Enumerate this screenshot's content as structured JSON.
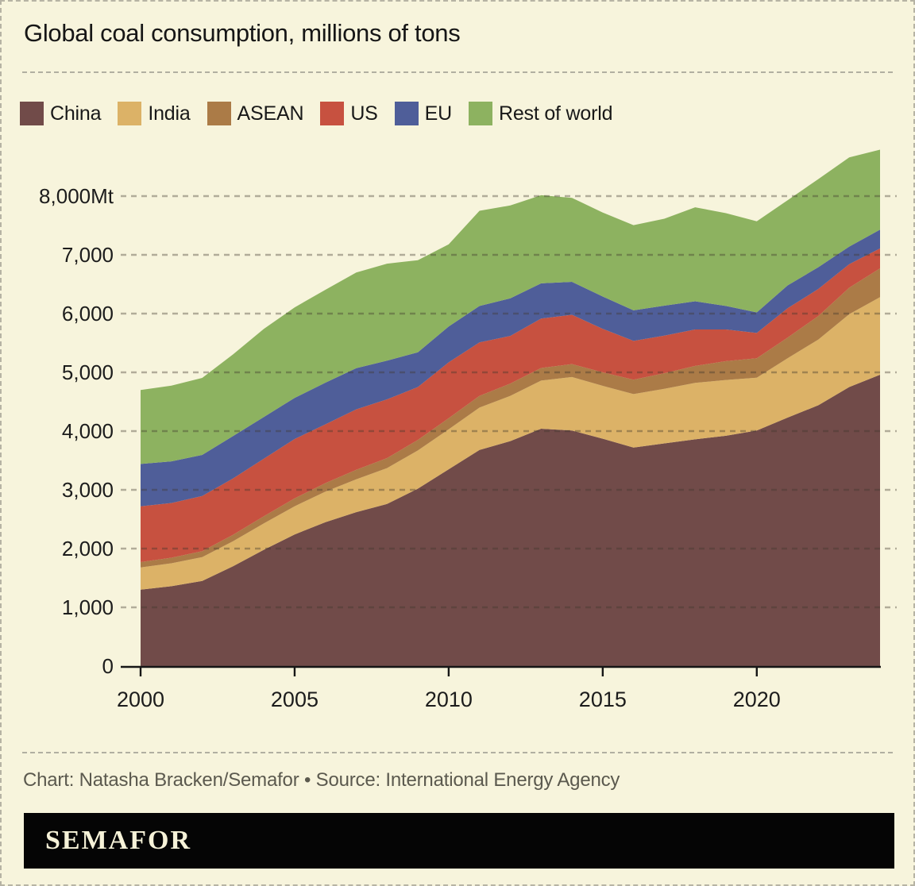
{
  "title": "Global coal consumption, millions of tons",
  "legend": [
    {
      "label": "China",
      "color": "#714b49"
    },
    {
      "label": "India",
      "color": "#dcb267"
    },
    {
      "label": "ASEAN",
      "color": "#ab7b47"
    },
    {
      "label": "US",
      "color": "#c75140"
    },
    {
      "label": "EU",
      "color": "#4f5e99"
    },
    {
      "label": "Rest of world",
      "color": "#8db260"
    }
  ],
  "chart_data": {
    "type": "area",
    "stacked": true,
    "title": "Global coal consumption, millions of tons",
    "unit": "Mt",
    "x": [
      2000,
      2001,
      2002,
      2003,
      2004,
      2005,
      2006,
      2007,
      2008,
      2009,
      2010,
      2011,
      2012,
      2013,
      2014,
      2015,
      2016,
      2017,
      2018,
      2019,
      2020,
      2021,
      2022,
      2023,
      2024
    ],
    "series": [
      {
        "name": "China",
        "color": "#714b49",
        "values": [
          1300,
          1360,
          1450,
          1700,
          1980,
          2240,
          2450,
          2620,
          2760,
          3020,
          3350,
          3680,
          3830,
          4040,
          4010,
          3870,
          3720,
          3790,
          3860,
          3920,
          4010,
          4230,
          4440,
          4750,
          4960
        ]
      },
      {
        "name": "India",
        "color": "#dcb267",
        "values": [
          380,
          390,
          405,
          425,
          450,
          480,
          520,
          560,
          610,
          650,
          680,
          720,
          770,
          820,
          910,
          900,
          910,
          930,
          960,
          950,
          900,
          1010,
          1120,
          1240,
          1320
        ]
      },
      {
        "name": "ASEAN",
        "color": "#ab7b47",
        "values": [
          90,
          95,
          100,
          110,
          120,
          135,
          145,
          160,
          170,
          180,
          190,
          200,
          210,
          215,
          220,
          230,
          245,
          265,
          290,
          320,
          330,
          350,
          400,
          450,
          490
        ]
      },
      {
        "name": "US",
        "color": "#c75140",
        "values": [
          950,
          930,
          940,
          960,
          980,
          1010,
          1000,
          1030,
          1000,
          900,
          950,
          910,
          810,
          840,
          840,
          740,
          660,
          640,
          620,
          540,
          430,
          500,
          460,
          400,
          340
        ]
      },
      {
        "name": "EU",
        "color": "#4f5e99",
        "values": [
          720,
          710,
          700,
          720,
          710,
          700,
          710,
          700,
          660,
          590,
          610,
          620,
          640,
          600,
          560,
          550,
          520,
          510,
          480,
          400,
          350,
          390,
          370,
          300,
          320
        ]
      },
      {
        "name": "Rest of world",
        "color": "#8db260",
        "values": [
          1260,
          1290,
          1310,
          1390,
          1500,
          1540,
          1580,
          1630,
          1650,
          1570,
          1400,
          1620,
          1580,
          1500,
          1430,
          1430,
          1450,
          1480,
          1600,
          1580,
          1550,
          1450,
          1500,
          1520,
          1360
        ]
      }
    ],
    "yticks": [
      0,
      1000,
      2000,
      3000,
      4000,
      5000,
      6000,
      7000,
      8000
    ],
    "ytick_labels": [
      "0",
      "1,000",
      "2,000",
      "3,000",
      "4,000",
      "5,000",
      "6,000",
      "7,000",
      "8,000Mt"
    ],
    "xticks": [
      2000,
      2005,
      2010,
      2015,
      2020
    ],
    "xtick_labels": [
      "2000",
      "2005",
      "2010",
      "2015",
      "2020"
    ],
    "ylim": [
      0,
      8800
    ],
    "xlim": [
      2000,
      2024
    ],
    "grid": "dashed-horizontal",
    "legend_position": "top"
  },
  "footer": {
    "credit": "Chart: Natasha Bracken/Semafor • Source: International Energy Agency",
    "logo": "SEMAFOR"
  },
  "colors": {
    "background": "#f7f4dc",
    "grid": "rgba(62,56,44,0.38)",
    "axis": "#161616",
    "tick_text": "#1c1c1c",
    "credit_text": "#5b594e",
    "logo_bar": "#050505",
    "logo_text": "#f6f2d8",
    "divider": "#b1afa1"
  }
}
